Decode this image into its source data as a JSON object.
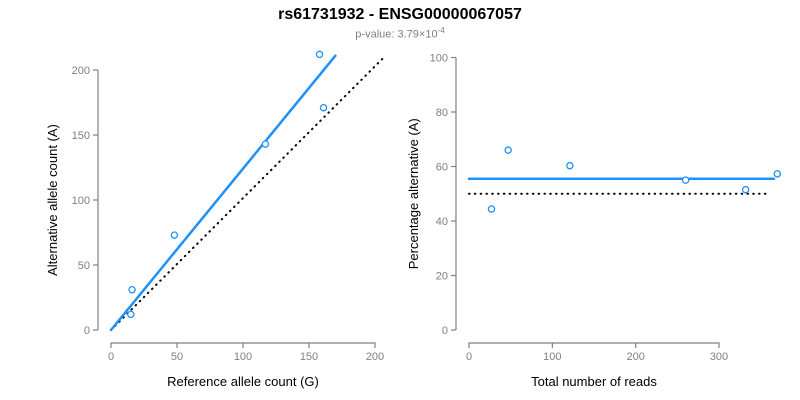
{
  "title": "rs61731932 - ENSG00000067057",
  "subtitle": {
    "main": "p-value: 3.79×10",
    "exponent": "-4"
  },
  "colors": {
    "accent_blue": "#1E90FF",
    "axis_gray": "#808080",
    "reference_black": "#000000",
    "label_black": "#000000",
    "background": "#ffffff"
  },
  "chart_data": [
    {
      "type": "scatter",
      "xlabel": "Reference allele count (G)",
      "ylabel": "Alternative allele count (A)",
      "xlim": [
        0,
        200
      ],
      "ylim": [
        0,
        200
      ],
      "xticks": [
        0,
        50,
        100,
        150,
        200
      ],
      "yticks": [
        0,
        50,
        100,
        150,
        200
      ],
      "grid": false,
      "points": [
        [
          15,
          12
        ],
        [
          16,
          31
        ],
        [
          48,
          73
        ],
        [
          117,
          143
        ],
        [
          161,
          171
        ],
        [
          158,
          212
        ]
      ],
      "fit_line": {
        "style": "solid",
        "color": "#1E90FF",
        "from": [
          0,
          0
        ],
        "to": [
          170,
          211
        ]
      },
      "reference_line": {
        "style": "dotted",
        "color": "#000000",
        "from": [
          0,
          0
        ],
        "to": [
          208,
          211
        ]
      }
    },
    {
      "type": "scatter",
      "xlabel": "Total number of reads",
      "ylabel": "Percentage alternative (A)",
      "xlim": [
        0,
        300
      ],
      "ylim": [
        0,
        100
      ],
      "xticks": [
        0,
        100,
        200,
        300
      ],
      "yticks": [
        0,
        20,
        40,
        60,
        80,
        100
      ],
      "grid": false,
      "points": [
        [
          27,
          44.4
        ],
        [
          47,
          66.0
        ],
        [
          121,
          60.3
        ],
        [
          260,
          55.0
        ],
        [
          332,
          51.5
        ],
        [
          370,
          57.3
        ]
      ],
      "fit_line": {
        "style": "solid",
        "color": "#1E90FF",
        "from": [
          0,
          55.5
        ],
        "to": [
          366,
          55.5
        ]
      },
      "reference_line": {
        "style": "dotted",
        "color": "#000000",
        "from": [
          0,
          50
        ],
        "to": [
          360,
          50
        ]
      }
    }
  ]
}
